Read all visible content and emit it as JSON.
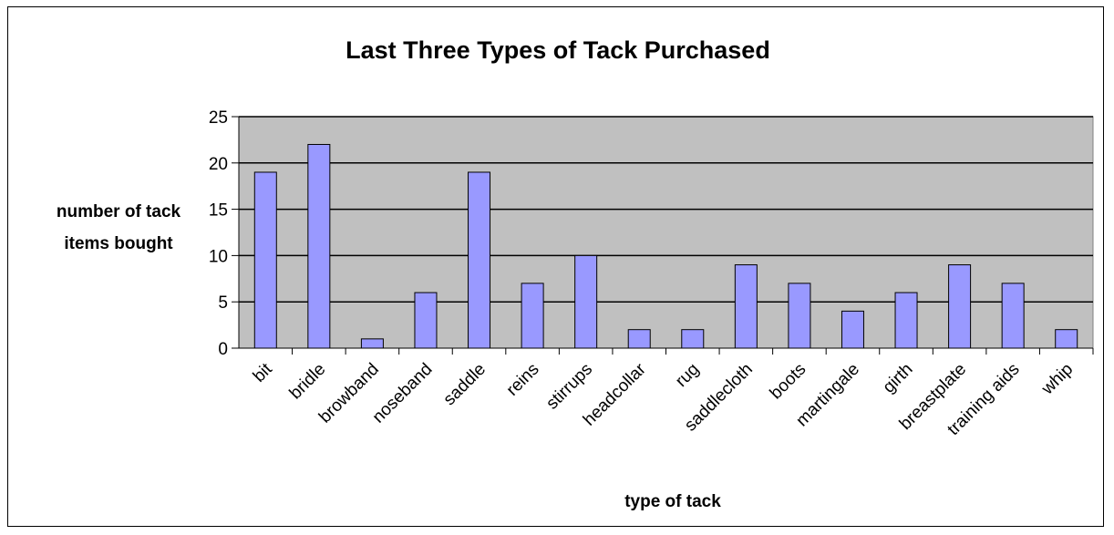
{
  "chart_data": {
    "type": "bar",
    "title": "Last Three Types of Tack Purchased",
    "xlabel": "type of tack",
    "ylabel_lines": [
      "number of tack",
      "items bought"
    ],
    "categories": [
      "bit",
      "bridle",
      "browband",
      "noseband",
      "saddle",
      "reins",
      "stirrups",
      "headcollar",
      "rug",
      "saddlecloth",
      "boots",
      "martingale",
      "girth",
      "breastplate",
      "training aids",
      "whip"
    ],
    "values": [
      19,
      22,
      1,
      6,
      19,
      7,
      10,
      2,
      2,
      9,
      7,
      4,
      6,
      9,
      7,
      2
    ],
    "ylim": [
      0,
      25
    ],
    "yticks": [
      0,
      5,
      10,
      15,
      20,
      25
    ],
    "grid": true,
    "legend": "none",
    "colors": {
      "bar": "#9999ff",
      "plot_bg": "#c0c0c0",
      "grid": "#000000"
    }
  }
}
